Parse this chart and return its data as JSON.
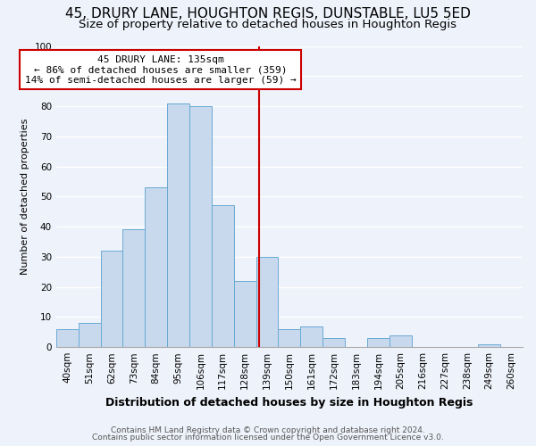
{
  "title": "45, DRURY LANE, HOUGHTON REGIS, DUNSTABLE, LU5 5ED",
  "subtitle": "Size of property relative to detached houses in Houghton Regis",
  "xlabel": "Distribution of detached houses by size in Houghton Regis",
  "ylabel": "Number of detached properties",
  "bar_labels": [
    "40sqm",
    "51sqm",
    "62sqm",
    "73sqm",
    "84sqm",
    "95sqm",
    "106sqm",
    "117sqm",
    "128sqm",
    "139sqm",
    "150sqm",
    "161sqm",
    "172sqm",
    "183sqm",
    "194sqm",
    "205sqm",
    "216sqm",
    "227sqm",
    "238sqm",
    "249sqm",
    "260sqm"
  ],
  "bar_values": [
    6,
    8,
    32,
    39,
    53,
    81,
    80,
    47,
    22,
    30,
    6,
    7,
    3,
    0,
    3,
    4,
    0,
    0,
    0,
    1,
    0
  ],
  "bar_color": "#c8d9ee",
  "bar_edge_color": "#6aaad4",
  "vline_x": 8.636,
  "vline_color": "#cc0000",
  "annotation_title": "45 DRURY LANE: 135sqm",
  "annotation_line1": "← 86% of detached houses are smaller (359)",
  "annotation_line2": "14% of semi-detached houses are larger (59) →",
  "annotation_box_edge": "#cc0000",
  "ylim": [
    0,
    100
  ],
  "yticks": [
    0,
    10,
    20,
    30,
    40,
    50,
    60,
    70,
    80,
    90,
    100
  ],
  "footnote1": "Contains HM Land Registry data © Crown copyright and database right 2024.",
  "footnote2": "Contains public sector information licensed under the Open Government Licence v3.0.",
  "background_color": "#eef2fa",
  "grid_color": "#ffffff",
  "title_fontsize": 11,
  "subtitle_fontsize": 9.5,
  "xlabel_fontsize": 9,
  "ylabel_fontsize": 8,
  "tick_fontsize": 7.5,
  "annot_fontsize": 8,
  "footnote_fontsize": 6.5
}
